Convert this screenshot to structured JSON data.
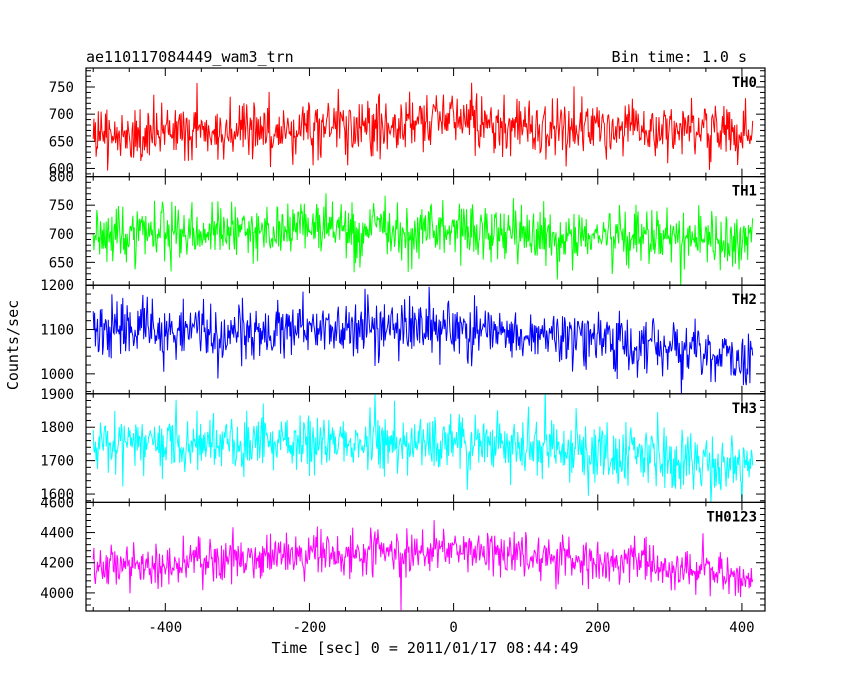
{
  "chart_data": {
    "type": "line",
    "title": "ae110117084449_wam3_trn",
    "subtitle": "Bin time: 1.0 s",
    "xlabel": "Time [sec] 0 = 2011/01/17 08:44:49",
    "ylabel": "Counts/sec",
    "xlim": [
      -510,
      432
    ],
    "x_ticks": [
      -400,
      -200,
      0,
      200,
      400
    ],
    "x_range": [
      -500,
      415
    ],
    "bin_time": 1.0,
    "grid": false,
    "panels": [
      {
        "name": "TH0",
        "color": "#ff0000",
        "ylim": [
          585,
          785
        ],
        "y_ticks": [
          600,
          650,
          700,
          750
        ],
        "trend": [
          [
            -500,
            660
          ],
          [
            -400,
            662
          ],
          [
            -300,
            668
          ],
          [
            -200,
            675
          ],
          [
            -100,
            680
          ],
          [
            0,
            690
          ],
          [
            100,
            680
          ],
          [
            200,
            672
          ],
          [
            300,
            668
          ],
          [
            415,
            665
          ]
        ],
        "noise_sd": 27
      },
      {
        "name": "TH1",
        "color": "#00ff00",
        "ylim": [
          610,
          800
        ],
        "y_ticks": [
          650,
          700,
          750,
          800
        ],
        "trend": [
          [
            -500,
            695
          ],
          [
            -400,
            700
          ],
          [
            -300,
            705
          ],
          [
            -200,
            708
          ],
          [
            -100,
            708
          ],
          [
            0,
            705
          ],
          [
            100,
            700
          ],
          [
            200,
            697
          ],
          [
            300,
            693
          ],
          [
            415,
            688
          ]
        ],
        "noise_sd": 25
      },
      {
        "name": "TH2",
        "color": "#0000ff",
        "ylim": [
          955,
          1200
        ],
        "y_ticks": [
          1000,
          1100,
          1200
        ],
        "trend": [
          [
            -500,
            1100
          ],
          [
            -400,
            1098
          ],
          [
            -300,
            1095
          ],
          [
            -200,
            1100
          ],
          [
            -100,
            1105
          ],
          [
            0,
            1102
          ],
          [
            100,
            1095
          ],
          [
            200,
            1082
          ],
          [
            300,
            1055
          ],
          [
            415,
            1035
          ]
        ],
        "noise_sd": 32
      },
      {
        "name": "TH3",
        "color": "#00ffff",
        "ylim": [
          1575,
          1900
        ],
        "y_ticks": [
          1600,
          1700,
          1800,
          1900
        ],
        "trend": [
          [
            -500,
            1755
          ],
          [
            -400,
            1755
          ],
          [
            -300,
            1755
          ],
          [
            -200,
            1755
          ],
          [
            -100,
            1755
          ],
          [
            0,
            1750
          ],
          [
            100,
            1745
          ],
          [
            200,
            1725
          ],
          [
            300,
            1705
          ],
          [
            415,
            1680
          ]
        ],
        "noise_sd": 45
      },
      {
        "name": "TH0123",
        "color": "#ff00ff",
        "ylim": [
          3880,
          4600
        ],
        "y_ticks": [
          4000,
          4200,
          4400,
          4600
        ],
        "trend": [
          [
            -500,
            4170
          ],
          [
            -400,
            4190
          ],
          [
            -300,
            4225
          ],
          [
            -200,
            4255
          ],
          [
            -100,
            4275
          ],
          [
            0,
            4290
          ],
          [
            100,
            4255
          ],
          [
            200,
            4215
          ],
          [
            300,
            4170
          ],
          [
            415,
            4105
          ]
        ],
        "noise_sd": 75
      }
    ]
  }
}
